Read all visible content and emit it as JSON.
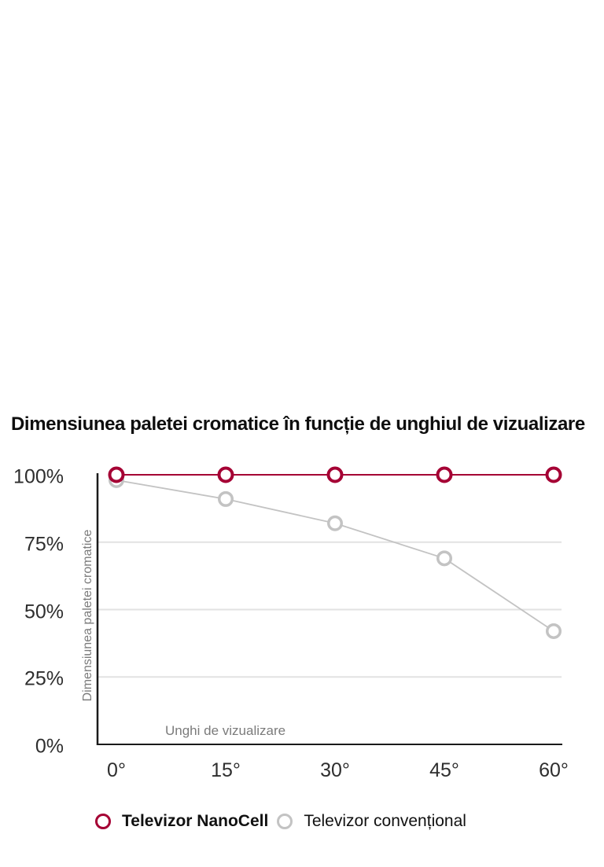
{
  "chart_data": {
    "type": "line",
    "title": "Dimensiunea paletei cromatice în funcție de unghiul de vizualizare",
    "xlabel": "Unghi de vizualizare",
    "ylabel": "Dimensiunea paletei cromatice",
    "x_categories": [
      "0°",
      "15°",
      "30°",
      "45°",
      "60°"
    ],
    "y_ticks": [
      {
        "label": "100%",
        "value": 100
      },
      {
        "label": "75%",
        "value": 75
      },
      {
        "label": "50%",
        "value": 50
      },
      {
        "label": "25%",
        "value": 25
      },
      {
        "label": "0%",
        "value": 0
      }
    ],
    "gridline_values": [
      75,
      50,
      25
    ],
    "ylim": [
      0,
      100
    ],
    "grid": "horizontal-only",
    "legend_position": "bottom",
    "series": [
      {
        "name": "Televizor NanoCell",
        "color": "#a50034",
        "marker": "open-circle",
        "legend_bold": true,
        "values": [
          100,
          100,
          100,
          100,
          100
        ]
      },
      {
        "name": "Televizor convențional",
        "color": "#c3c3c3",
        "marker": "open-circle",
        "legend_bold": false,
        "values": [
          98,
          91,
          82,
          69,
          42
        ]
      }
    ]
  },
  "colors": {
    "background": "#ffffff",
    "axis": "#1a1a1a",
    "gridline": "#e2e2e2",
    "tick_label": "#2e2e2e",
    "axis_title": "#7b7b7b",
    "title_text": "#0e0e0e",
    "nanocell_red": "#a50034",
    "conventional_gray": "#c3c3c3"
  }
}
